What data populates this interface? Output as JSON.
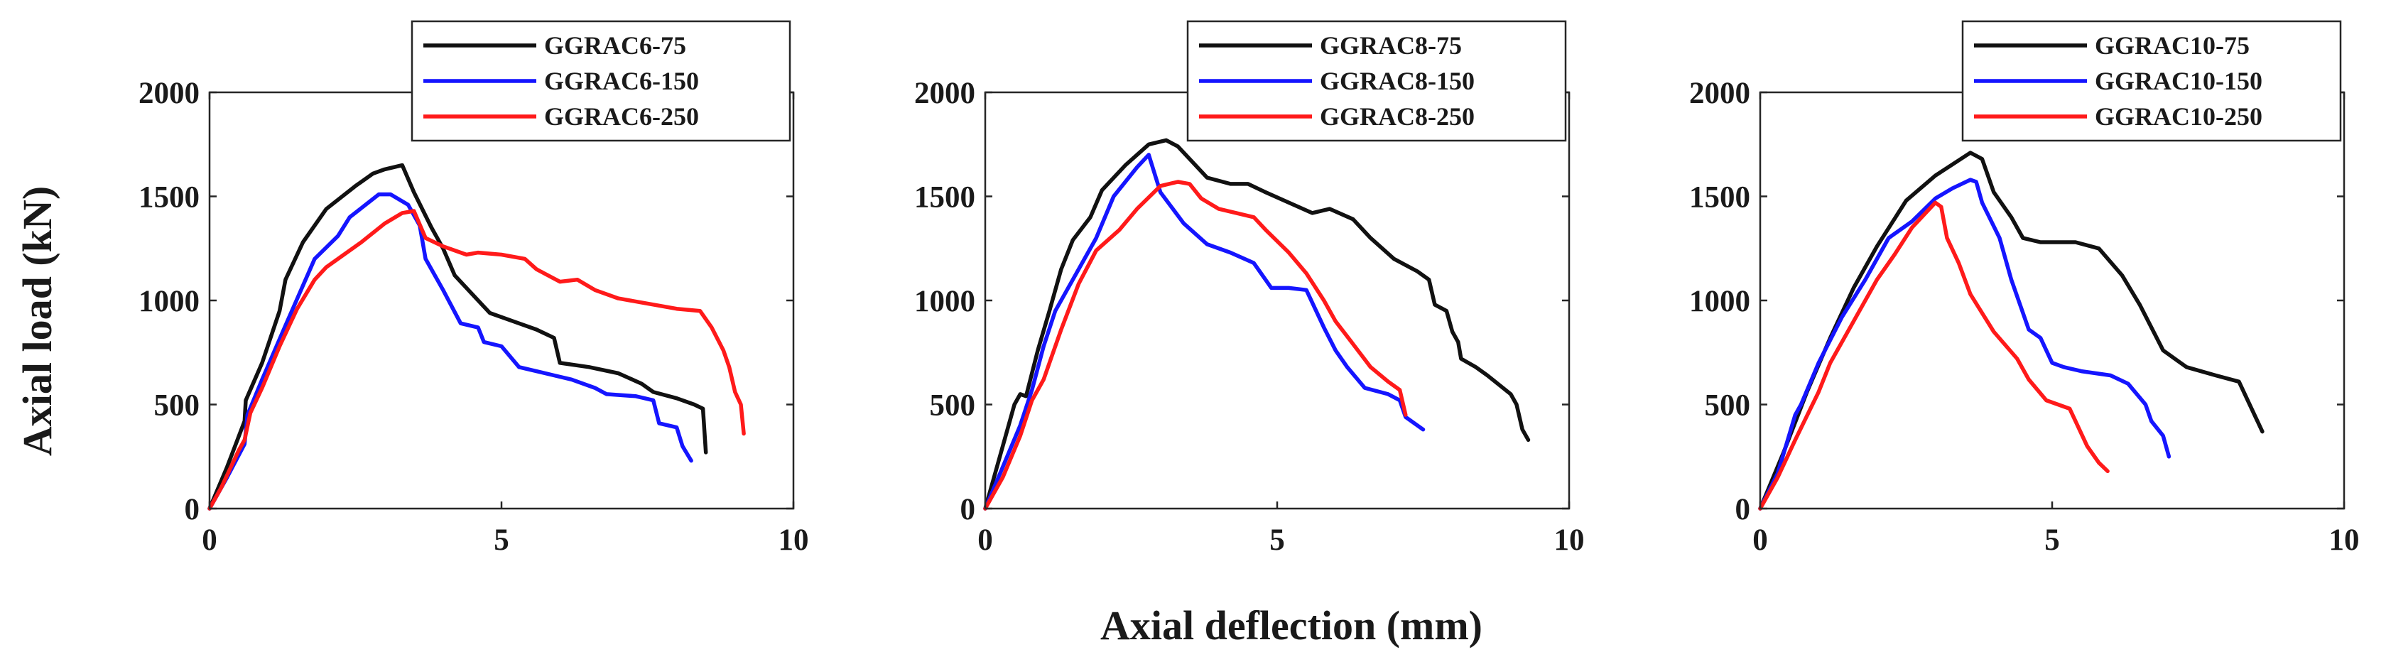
{
  "figure": {
    "ylabel": "Axial load (kN)",
    "xlabel": "Axial deflection (mm)"
  },
  "colors": {
    "s75": "#111111",
    "s150": "#1515ff",
    "s250": "#ff1a1a"
  },
  "chart_data": [
    {
      "type": "line",
      "xlim": [
        0,
        10
      ],
      "ylim": [
        0,
        2000
      ],
      "xticks": [
        0,
        5,
        10
      ],
      "yticks": [
        0,
        500,
        1000,
        1500,
        2000
      ],
      "xlabel": "Axial deflection (mm)",
      "ylabel": "Axial load (kN)",
      "legend_position": "top-right",
      "series": [
        {
          "name": "GGRAC6-75",
          "color": "#111111",
          "points": [
            [
              0,
              0
            ],
            [
              0.3,
              200
            ],
            [
              0.6,
              420
            ],
            [
              0.62,
              520
            ],
            [
              0.9,
              700
            ],
            [
              1.2,
              950
            ],
            [
              1.3,
              1100
            ],
            [
              1.6,
              1280
            ],
            [
              2.0,
              1440
            ],
            [
              2.5,
              1550
            ],
            [
              2.8,
              1610
            ],
            [
              3.0,
              1630
            ],
            [
              3.3,
              1650
            ],
            [
              3.5,
              1520
            ],
            [
              3.8,
              1350
            ],
            [
              4.0,
              1250
            ],
            [
              4.2,
              1120
            ],
            [
              4.6,
              1000
            ],
            [
              4.8,
              940
            ],
            [
              5.2,
              900
            ],
            [
              5.6,
              860
            ],
            [
              5.9,
              820
            ],
            [
              6.0,
              700
            ],
            [
              6.5,
              680
            ],
            [
              7.0,
              650
            ],
            [
              7.4,
              600
            ],
            [
              7.6,
              560
            ],
            [
              8.0,
              530
            ],
            [
              8.3,
              500
            ],
            [
              8.45,
              480
            ],
            [
              8.5,
              270
            ]
          ]
        },
        {
          "name": "GGRAC6-150",
          "color": "#1515ff",
          "points": [
            [
              0,
              0
            ],
            [
              0.3,
              150
            ],
            [
              0.6,
              310
            ],
            [
              0.65,
              450
            ],
            [
              0.9,
              620
            ],
            [
              1.3,
              880
            ],
            [
              1.8,
              1200
            ],
            [
              2.2,
              1310
            ],
            [
              2.4,
              1400
            ],
            [
              2.9,
              1510
            ],
            [
              3.1,
              1510
            ],
            [
              3.4,
              1460
            ],
            [
              3.6,
              1360
            ],
            [
              3.7,
              1200
            ],
            [
              4.0,
              1050
            ],
            [
              4.3,
              890
            ],
            [
              4.6,
              870
            ],
            [
              4.7,
              800
            ],
            [
              5.0,
              780
            ],
            [
              5.3,
              680
            ],
            [
              5.9,
              640
            ],
            [
              6.2,
              620
            ],
            [
              6.6,
              580
            ],
            [
              6.8,
              550
            ],
            [
              7.3,
              540
            ],
            [
              7.6,
              520
            ],
            [
              7.7,
              410
            ],
            [
              8.0,
              390
            ],
            [
              8.1,
              300
            ],
            [
              8.25,
              230
            ]
          ]
        },
        {
          "name": "GGRAC6-250",
          "color": "#ff1a1a",
          "points": [
            [
              0,
              0
            ],
            [
              0.2,
              100
            ],
            [
              0.5,
              280
            ],
            [
              0.6,
              330
            ],
            [
              0.7,
              460
            ],
            [
              0.9,
              580
            ],
            [
              1.2,
              780
            ],
            [
              1.5,
              960
            ],
            [
              1.8,
              1100
            ],
            [
              2.0,
              1160
            ],
            [
              2.3,
              1220
            ],
            [
              2.6,
              1280
            ],
            [
              3.0,
              1370
            ],
            [
              3.3,
              1420
            ],
            [
              3.5,
              1430
            ],
            [
              3.7,
              1300
            ],
            [
              4.0,
              1260
            ],
            [
              4.4,
              1220
            ],
            [
              4.6,
              1230
            ],
            [
              5.0,
              1220
            ],
            [
              5.4,
              1200
            ],
            [
              5.6,
              1150
            ],
            [
              6.0,
              1090
            ],
            [
              6.3,
              1100
            ],
            [
              6.6,
              1050
            ],
            [
              7.0,
              1010
            ],
            [
              7.4,
              990
            ],
            [
              8.0,
              960
            ],
            [
              8.4,
              950
            ],
            [
              8.6,
              870
            ],
            [
              8.8,
              760
            ],
            [
              8.9,
              680
            ],
            [
              9.0,
              560
            ],
            [
              9.1,
              500
            ],
            [
              9.15,
              360
            ]
          ]
        }
      ]
    },
    {
      "type": "line",
      "xlim": [
        0,
        10
      ],
      "ylim": [
        0,
        2000
      ],
      "xticks": [
        0,
        5,
        10
      ],
      "yticks": [
        0,
        500,
        1000,
        1500,
        2000
      ],
      "xlabel": "Axial deflection (mm)",
      "ylabel": "Axial load (kN)",
      "legend_position": "top-right",
      "series": [
        {
          "name": "GGRAC8-75",
          "color": "#111111",
          "points": [
            [
              0,
              0
            ],
            [
              0.3,
              300
            ],
            [
              0.5,
              500
            ],
            [
              0.6,
              550
            ],
            [
              0.7,
              540
            ],
            [
              0.9,
              760
            ],
            [
              1.1,
              950
            ],
            [
              1.3,
              1150
            ],
            [
              1.5,
              1290
            ],
            [
              1.8,
              1400
            ],
            [
              2.0,
              1530
            ],
            [
              2.4,
              1650
            ],
            [
              2.8,
              1750
            ],
            [
              3.1,
              1770
            ],
            [
              3.3,
              1740
            ],
            [
              3.5,
              1680
            ],
            [
              3.8,
              1590
            ],
            [
              4.2,
              1560
            ],
            [
              4.5,
              1560
            ],
            [
              4.8,
              1520
            ],
            [
              5.2,
              1470
            ],
            [
              5.6,
              1420
            ],
            [
              5.9,
              1440
            ],
            [
              6.3,
              1390
            ],
            [
              6.6,
              1300
            ],
            [
              7.0,
              1200
            ],
            [
              7.4,
              1140
            ],
            [
              7.6,
              1100
            ],
            [
              7.7,
              980
            ],
            [
              7.9,
              950
            ],
            [
              8.0,
              850
            ],
            [
              8.1,
              800
            ],
            [
              8.15,
              720
            ],
            [
              8.4,
              680
            ],
            [
              8.6,
              640
            ],
            [
              9.0,
              550
            ],
            [
              9.1,
              500
            ],
            [
              9.2,
              380
            ],
            [
              9.3,
              330
            ]
          ]
        },
        {
          "name": "GGRAC8-150",
          "color": "#1515ff",
          "points": [
            [
              0,
              0
            ],
            [
              0.3,
              200
            ],
            [
              0.6,
              400
            ],
            [
              0.8,
              570
            ],
            [
              1.0,
              780
            ],
            [
              1.2,
              950
            ],
            [
              1.5,
              1100
            ],
            [
              1.9,
              1300
            ],
            [
              2.2,
              1500
            ],
            [
              2.6,
              1640
            ],
            [
              2.8,
              1700
            ],
            [
              3.0,
              1520
            ],
            [
              3.4,
              1370
            ],
            [
              3.8,
              1270
            ],
            [
              4.2,
              1230
            ],
            [
              4.6,
              1180
            ],
            [
              4.9,
              1060
            ],
            [
              5.2,
              1060
            ],
            [
              5.5,
              1050
            ],
            [
              5.8,
              870
            ],
            [
              6.0,
              760
            ],
            [
              6.2,
              680
            ],
            [
              6.5,
              580
            ],
            [
              6.9,
              550
            ],
            [
              7.1,
              520
            ],
            [
              7.2,
              440
            ],
            [
              7.5,
              380
            ]
          ]
        },
        {
          "name": "GGRAC8-250",
          "color": "#ff1a1a",
          "points": [
            [
              0,
              0
            ],
            [
              0.3,
              150
            ],
            [
              0.6,
              350
            ],
            [
              0.8,
              520
            ],
            [
              1.0,
              620
            ],
            [
              1.3,
              860
            ],
            [
              1.6,
              1080
            ],
            [
              1.9,
              1240
            ],
            [
              2.3,
              1340
            ],
            [
              2.6,
              1440
            ],
            [
              3.0,
              1550
            ],
            [
              3.3,
              1570
            ],
            [
              3.5,
              1560
            ],
            [
              3.7,
              1490
            ],
            [
              4.0,
              1440
            ],
            [
              4.3,
              1420
            ],
            [
              4.6,
              1400
            ],
            [
              4.8,
              1340
            ],
            [
              5.2,
              1230
            ],
            [
              5.5,
              1130
            ],
            [
              5.8,
              1000
            ],
            [
              6.0,
              900
            ],
            [
              6.3,
              790
            ],
            [
              6.6,
              680
            ],
            [
              6.9,
              610
            ],
            [
              7.1,
              570
            ],
            [
              7.2,
              450
            ]
          ]
        }
      ]
    },
    {
      "type": "line",
      "xlim": [
        0,
        10
      ],
      "ylim": [
        0,
        2000
      ],
      "xticks": [
        0,
        5,
        10
      ],
      "yticks": [
        0,
        500,
        1000,
        1500,
        2000
      ],
      "xlabel": "Axial deflection (mm)",
      "ylabel": "Axial load (kN)",
      "legend_position": "top-right",
      "series": [
        {
          "name": "GGRAC10-75",
          "color": "#111111",
          "points": [
            [
              0,
              0
            ],
            [
              0.4,
              270
            ],
            [
              0.8,
              560
            ],
            [
              1.2,
              820
            ],
            [
              1.6,
              1060
            ],
            [
              2.0,
              1260
            ],
            [
              2.5,
              1480
            ],
            [
              3.0,
              1600
            ],
            [
              3.6,
              1710
            ],
            [
              3.8,
              1680
            ],
            [
              4.0,
              1520
            ],
            [
              4.3,
              1400
            ],
            [
              4.5,
              1300
            ],
            [
              4.8,
              1280
            ],
            [
              5.4,
              1280
            ],
            [
              5.8,
              1250
            ],
            [
              6.2,
              1120
            ],
            [
              6.5,
              980
            ],
            [
              6.9,
              760
            ],
            [
              7.3,
              680
            ],
            [
              7.8,
              640
            ],
            [
              8.2,
              610
            ],
            [
              8.6,
              370
            ]
          ]
        },
        {
          "name": "GGRAC10-150",
          "color": "#1515ff",
          "points": [
            [
              0,
              0
            ],
            [
              0.3,
              170
            ],
            [
              0.6,
              450
            ],
            [
              0.7,
              500
            ],
            [
              1.0,
              700
            ],
            [
              1.4,
              920
            ],
            [
              1.8,
              1100
            ],
            [
              2.2,
              1300
            ],
            [
              2.6,
              1380
            ],
            [
              3.0,
              1490
            ],
            [
              3.3,
              1540
            ],
            [
              3.6,
              1580
            ],
            [
              3.7,
              1570
            ],
            [
              3.8,
              1470
            ],
            [
              4.1,
              1300
            ],
            [
              4.3,
              1100
            ],
            [
              4.6,
              860
            ],
            [
              4.8,
              820
            ],
            [
              5.0,
              700
            ],
            [
              5.2,
              680
            ],
            [
              5.5,
              660
            ],
            [
              6.0,
              640
            ],
            [
              6.3,
              600
            ],
            [
              6.6,
              500
            ],
            [
              6.7,
              420
            ],
            [
              6.9,
              350
            ],
            [
              7.0,
              250
            ]
          ]
        },
        {
          "name": "GGRAC10-250",
          "color": "#ff1a1a",
          "points": [
            [
              0,
              0
            ],
            [
              0.3,
              150
            ],
            [
              0.6,
              330
            ],
            [
              1.0,
              560
            ],
            [
              1.2,
              700
            ],
            [
              1.6,
              900
            ],
            [
              2.0,
              1100
            ],
            [
              2.3,
              1220
            ],
            [
              2.6,
              1350
            ],
            [
              3.0,
              1470
            ],
            [
              3.1,
              1450
            ],
            [
              3.2,
              1300
            ],
            [
              3.4,
              1180
            ],
            [
              3.6,
              1030
            ],
            [
              4.0,
              850
            ],
            [
              4.4,
              720
            ],
            [
              4.6,
              620
            ],
            [
              4.9,
              520
            ],
            [
              5.3,
              480
            ],
            [
              5.6,
              300
            ],
            [
              5.8,
              220
            ],
            [
              5.95,
              180
            ]
          ]
        }
      ]
    }
  ]
}
